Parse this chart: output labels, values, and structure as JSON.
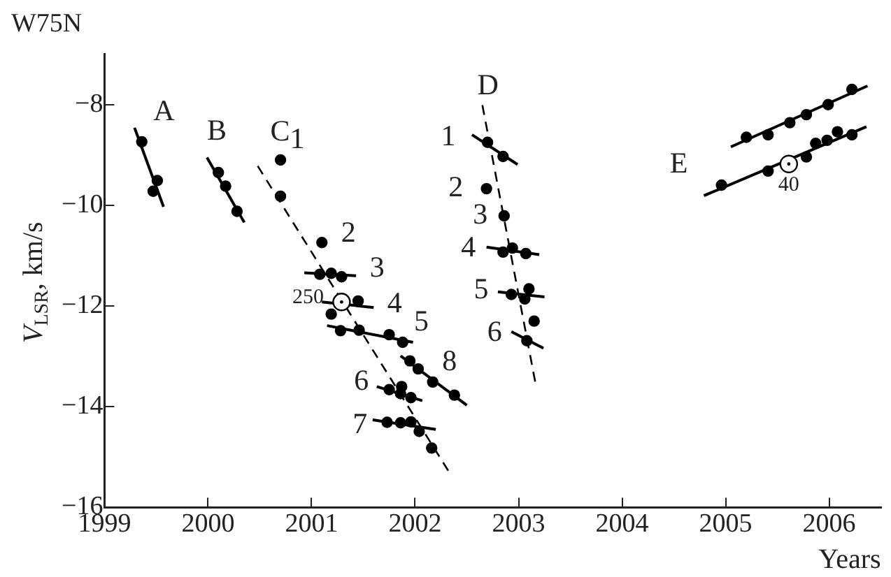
{
  "chart_data": {
    "type": "scatter",
    "title": "W75N",
    "xlabel": "Years",
    "ylabel": "V$_{LSR}$, km/s",
    "xlim": [
      1999,
      2006.5
    ],
    "ylim": [
      -16,
      -7
    ],
    "xticks": [
      1999,
      2000,
      2001,
      2002,
      2003,
      2004,
      2005,
      2006
    ],
    "yticks": [
      {
        "value": -16,
        "label": "−16"
      },
      {
        "value": -14,
        "label": "−14"
      },
      {
        "value": -12,
        "label": "−12"
      },
      {
        "value": -10,
        "label": "−10"
      },
      {
        "value": -8,
        "label": "−8"
      }
    ],
    "grid": false,
    "legend": false,
    "series": [
      {
        "type": "scatter",
        "marker": "circle",
        "color": "#000000",
        "x": [
          1999.36,
          1999.51,
          1999.47,
          2000.1,
          2000.17,
          2000.28,
          2000.7,
          2000.7,
          2001.1,
          2001.08,
          2001.19,
          2001.29,
          2001.45,
          2001.19,
          2001.28,
          2001.46,
          2001.75,
          2001.88,
          2001.95,
          2002.03,
          2002.17,
          2002.38,
          2001.75,
          2001.87,
          2001.86,
          2001.96,
          2001.73,
          2001.86,
          2001.96,
          2002.04,
          2002.16
        ],
        "values": [
          -8.74,
          -9.51,
          -9.72,
          -9.35,
          -9.62,
          -10.12,
          -9.1,
          -9.82,
          -10.74,
          -11.37,
          -11.35,
          -11.42,
          -11.9,
          -12.16,
          -12.49,
          -12.48,
          -12.57,
          -12.72,
          -13.09,
          -13.25,
          -13.51,
          -13.77,
          -13.66,
          -13.6,
          -13.74,
          -13.82,
          -14.31,
          -14.32,
          -14.3,
          -14.49,
          -14.82
        ]
      },
      {
        "type": "scatter",
        "marker": "circle",
        "color": "#000000",
        "x": [
          2002.7,
          2002.85,
          2002.69,
          2002.86,
          2002.85,
          2002.94,
          2003.07,
          2002.93,
          2003.1,
          2003.06,
          2003.15,
          2003.08
        ],
        "values": [
          -8.75,
          -9.03,
          -9.67,
          -10.21,
          -10.93,
          -10.85,
          -10.96,
          -11.77,
          -11.66,
          -11.86,
          -12.3,
          -12.69
        ]
      },
      {
        "type": "scatter",
        "marker": "circle",
        "color": "#000000",
        "x": [
          2005.2,
          2005.41,
          2005.62,
          2005.78,
          2005.99,
          2006.22,
          2004.96,
          2005.41,
          2005.78,
          2005.87,
          2005.98,
          2006.08,
          2006.22
        ],
        "values": [
          -8.65,
          -8.6,
          -8.36,
          -8.2,
          -8.0,
          -7.7,
          -9.6,
          -9.32,
          -9.04,
          -8.77,
          -8.71,
          -8.54,
          -8.6
        ]
      },
      {
        "type": "scatter",
        "marker": "circle",
        "color": "#ffffff",
        "x": [
          2001.29,
          2005.61
        ],
        "values": [
          -11.92,
          -9.18
        ]
      },
      {
        "type": "line",
        "line_style": "solid",
        "color": "#000000",
        "x": [
          1999.29,
          1999.57
        ],
        "values": [
          -8.46,
          -10.03
        ]
      },
      {
        "type": "line",
        "line_style": "solid",
        "color": "#000000",
        "x": [
          1999.99,
          2000.35
        ],
        "values": [
          -9.05,
          -10.34
        ]
      },
      {
        "type": "line",
        "line_style": "dashed",
        "color": "#000000",
        "x": [
          2000.48,
          2002.32
        ],
        "values": [
          -9.22,
          -15.27
        ]
      },
      {
        "type": "line",
        "line_style": "solid",
        "color": "#000000",
        "x": [
          2000.93,
          2001.43
        ],
        "values": [
          -11.34,
          -11.4
        ]
      },
      {
        "type": "line",
        "line_style": "solid",
        "color": "#000000",
        "x": [
          2001.1,
          2001.6
        ],
        "values": [
          -11.92,
          -12.03
        ]
      },
      {
        "type": "line",
        "line_style": "solid",
        "color": "#000000",
        "x": [
          2001.15,
          2001.98
        ],
        "values": [
          -12.39,
          -12.72
        ]
      },
      {
        "type": "line",
        "line_style": "solid",
        "color": "#000000",
        "x": [
          2001.86,
          2002.5
        ],
        "values": [
          -12.99,
          -13.97
        ]
      },
      {
        "type": "line",
        "line_style": "solid",
        "color": "#000000",
        "x": [
          2001.63,
          2002.07
        ],
        "values": [
          -13.6,
          -13.88
        ]
      },
      {
        "type": "line",
        "line_style": "solid",
        "color": "#000000",
        "x": [
          2001.59,
          2002.2
        ],
        "values": [
          -14.26,
          -14.45
        ]
      },
      {
        "type": "line",
        "line_style": "dashed",
        "color": "#000000",
        "x": [
          2002.65,
          2003.16
        ],
        "values": [
          -8.01,
          -13.5
        ]
      },
      {
        "type": "line",
        "line_style": "solid",
        "color": "#000000",
        "x": [
          2002.55,
          2002.99
        ],
        "values": [
          -8.6,
          -9.19
        ]
      },
      {
        "type": "line",
        "line_style": "solid",
        "color": "#000000",
        "x": [
          2002.69,
          2003.2
        ],
        "values": [
          -10.83,
          -10.98
        ]
      },
      {
        "type": "line",
        "line_style": "solid",
        "color": "#000000",
        "x": [
          2002.8,
          2003.25
        ],
        "values": [
          -11.72,
          -11.82
        ]
      },
      {
        "type": "line",
        "line_style": "solid",
        "color": "#000000",
        "x": [
          2002.93,
          2003.24
        ],
        "values": [
          -12.51,
          -12.84
        ]
      },
      {
        "type": "line",
        "line_style": "solid",
        "color": "#000000",
        "x": [
          2005.05,
          2006.37
        ],
        "values": [
          -8.84,
          -7.63
        ]
      },
      {
        "type": "line",
        "line_style": "solid",
        "color": "#000000",
        "x": [
          2004.79,
          2006.36
        ],
        "values": [
          -9.81,
          -8.44
        ]
      }
    ],
    "annotations": [
      {
        "text": "A",
        "x": 1999.29,
        "y": -8.46
      },
      {
        "text": "B",
        "x": 1999.99,
        "y": -9.05
      },
      {
        "text": "C",
        "x": 2000.48,
        "y": -9.22
      },
      {
        "text": "1",
        "x": 2000.7,
        "y": -9.1
      },
      {
        "text": "2",
        "x": 2001.1,
        "y": -10.74
      },
      {
        "text": "3",
        "x": 2001.43,
        "y": -11.4
      },
      {
        "text": "250",
        "x": 2001.29,
        "y": -11.92
      },
      {
        "text": "4",
        "x": 2001.6,
        "y": -12.03
      },
      {
        "text": "5",
        "x": 2001.98,
        "y": -12.72
      },
      {
        "text": "8",
        "x": 2002.17,
        "y": -13.51
      },
      {
        "text": "6",
        "x": 2001.63,
        "y": -13.6
      },
      {
        "text": "7",
        "x": 2001.59,
        "y": -14.26
      },
      {
        "text": "D",
        "x": 2002.65,
        "y": -8.01
      },
      {
        "text": "1",
        "x": 2002.55,
        "y": -8.6
      },
      {
        "text": "2",
        "x": 2002.69,
        "y": -9.67
      },
      {
        "text": "3",
        "x": 2002.86,
        "y": -10.21
      },
      {
        "text": "4",
        "x": 2002.69,
        "y": -10.83
      },
      {
        "text": "5",
        "x": 2002.8,
        "y": -11.72
      },
      {
        "text": "6",
        "x": 2002.93,
        "y": -12.51
      },
      {
        "text": "E",
        "x": 2004.79,
        "y": -9.81
      },
      {
        "text": "40",
        "x": 2005.61,
        "y": -9.18
      }
    ]
  }
}
